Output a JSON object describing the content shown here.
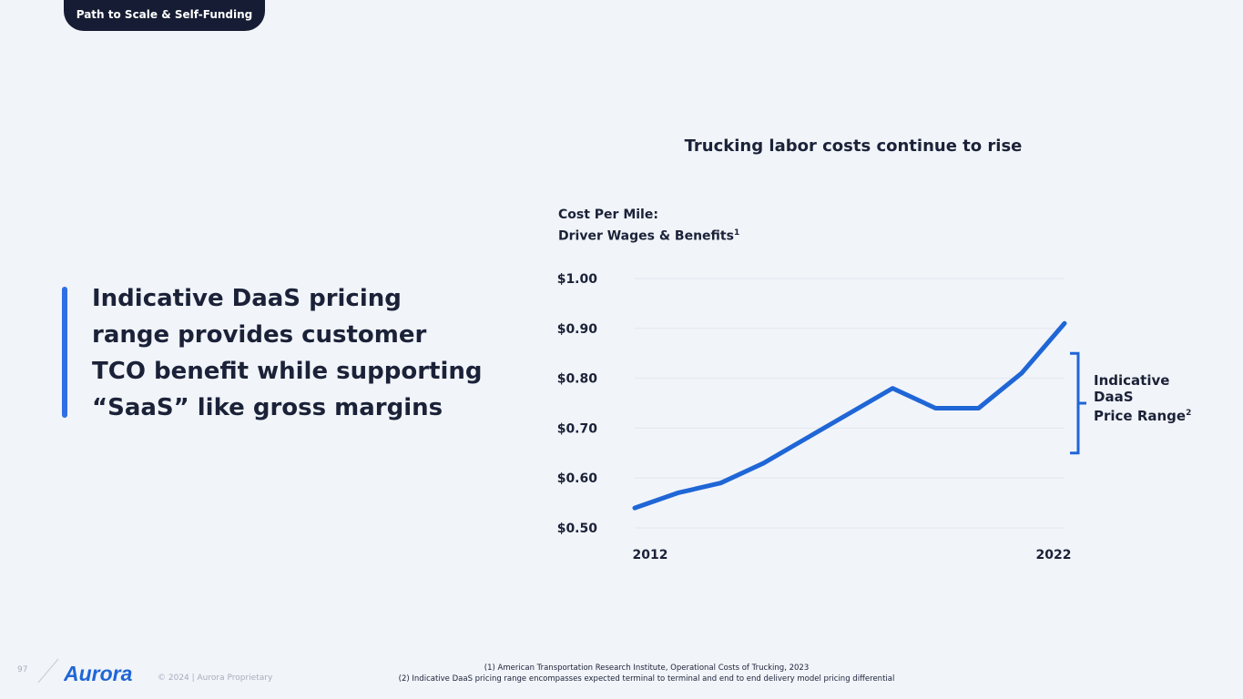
{
  "header": {
    "section_tag": "Path to Scale & Self-Funding"
  },
  "headline": {
    "line1": "Indicative DaaS pricing",
    "line2": "range provides customer",
    "line3": "TCO benefit while supporting",
    "line4": "“SaaS” like gross margins"
  },
  "chart_data": {
    "type": "line",
    "title": "Trucking labor costs continue to rise",
    "ylabel_line1": "Cost Per Mile:",
    "ylabel_line2": "Driver Wages & Benefits",
    "ylabel_footnote": "1",
    "y_ticks": [
      "$1.00",
      "$0.90",
      "$0.80",
      "$0.70",
      "$0.60",
      "$0.50"
    ],
    "ylim": [
      0.5,
      1.0
    ],
    "x_tick_labels": [
      "2012",
      "2022"
    ],
    "x": [
      2012,
      2013,
      2014,
      2015,
      2016,
      2017,
      2018,
      2019,
      2020,
      2021,
      2022
    ],
    "series": [
      {
        "values": [
          0.54,
          0.57,
          0.59,
          0.63,
          0.68,
          0.73,
          0.78,
          0.74,
          0.74,
          0.81,
          0.91
        ]
      }
    ],
    "grid": true,
    "line_color": "#1f66d6",
    "annotation": {
      "line1": "Indicative",
      "line2": "DaaS",
      "line3": "Price Range",
      "footnote": "2",
      "range": [
        0.65,
        0.85
      ]
    }
  },
  "footer": {
    "page_number": "97",
    "logo_text": "Aurora",
    "copyright": "© 2024 | Aurora Proprietary",
    "footnote1": "(1) American Transportation Research Institute,  Operational Costs of Trucking, 2023",
    "footnote2": "(2) Indicative DaaS pricing range encompasses expected terminal to terminal and end to end delivery model pricing differential"
  }
}
